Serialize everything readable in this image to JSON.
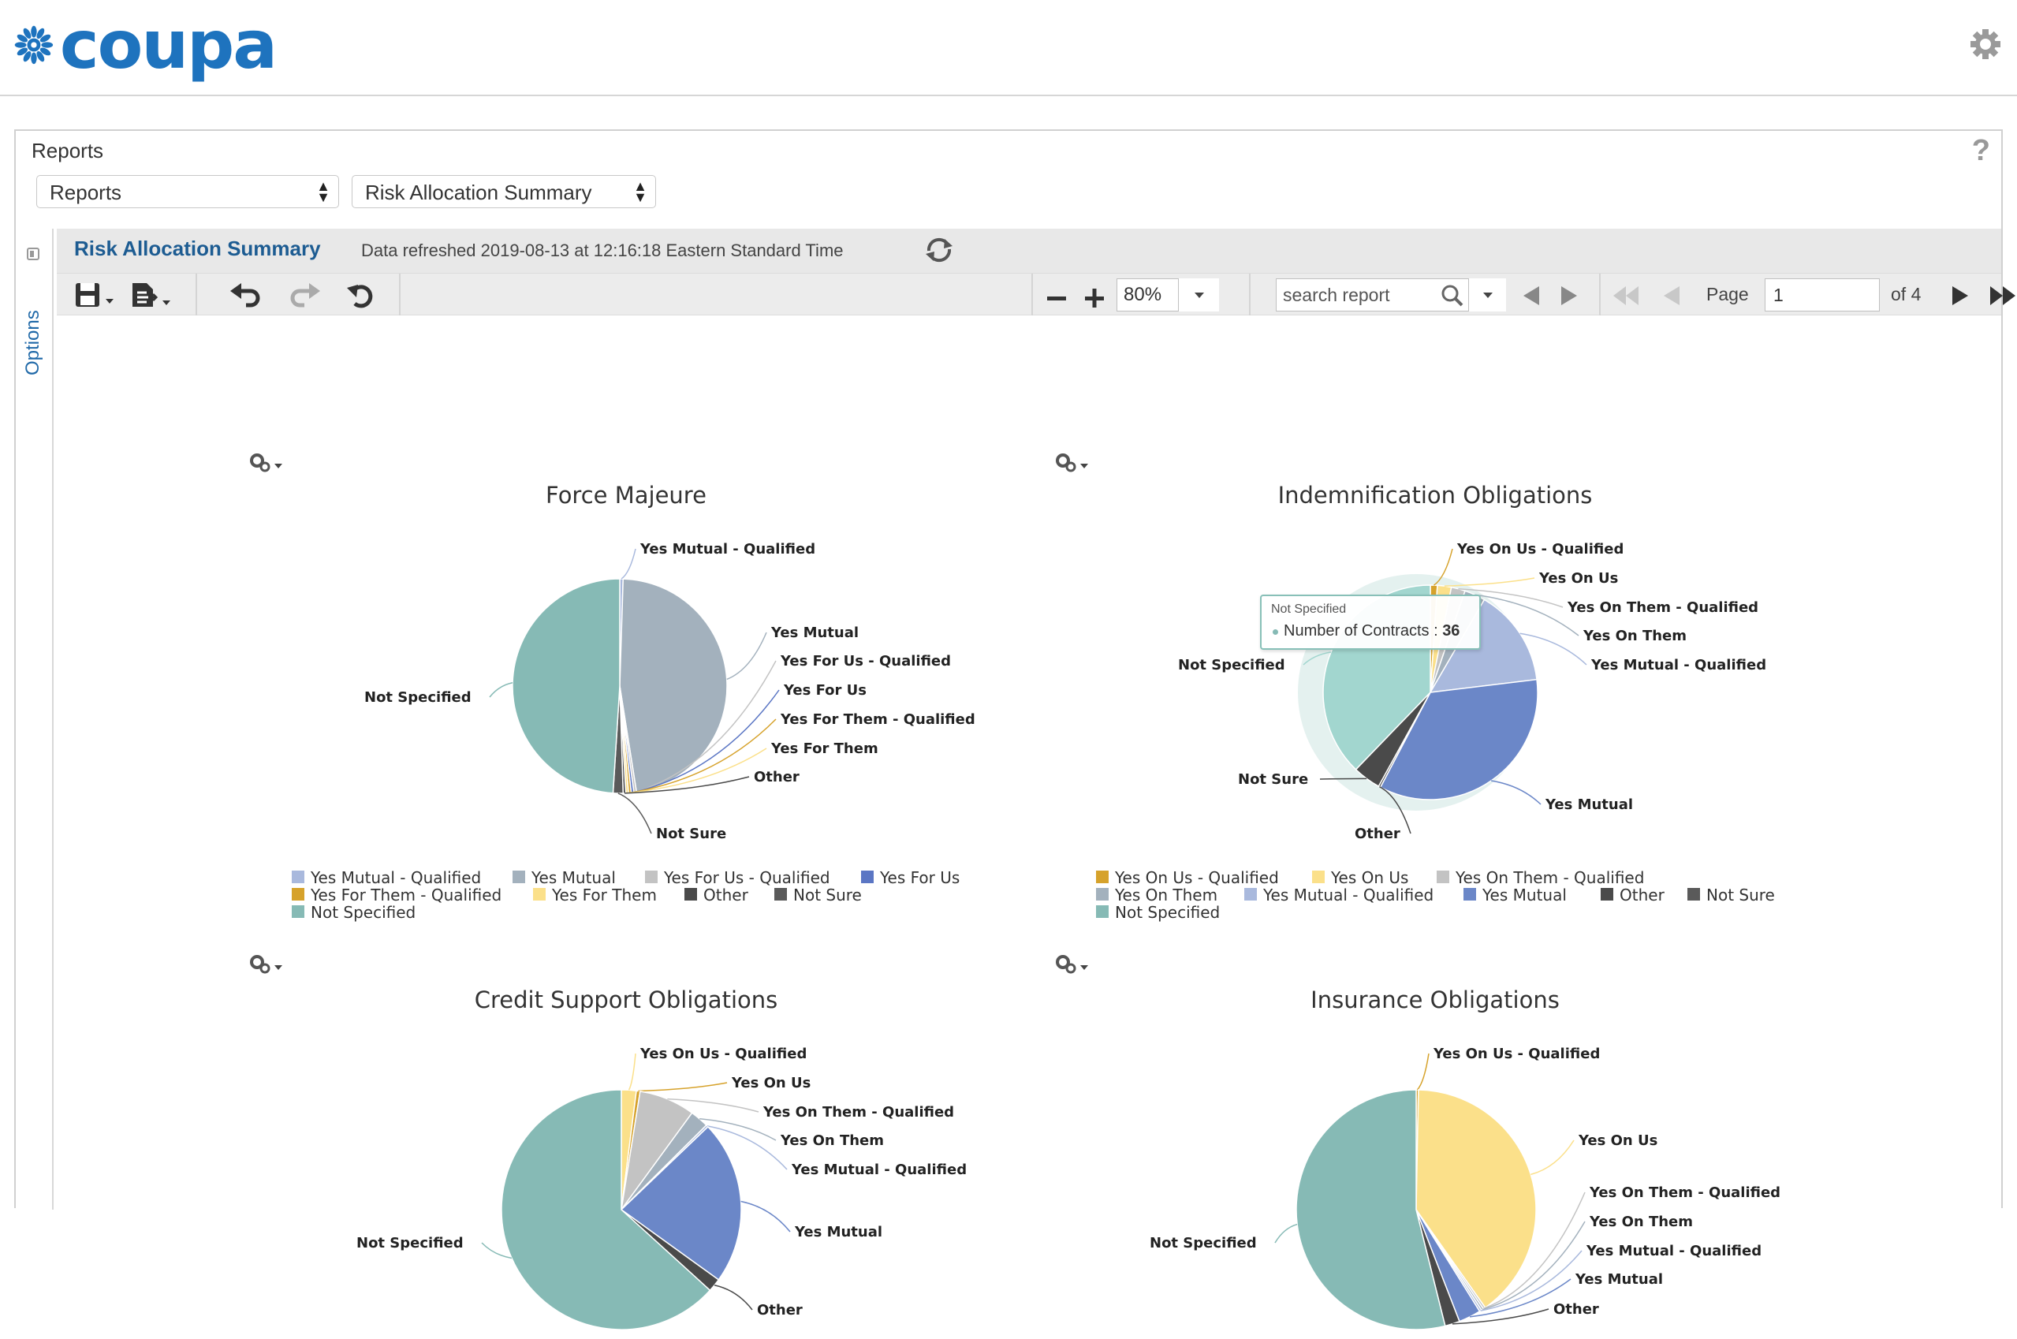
{
  "brand": {
    "name": "coupa",
    "color": "#1e73be"
  },
  "panel": {
    "title": "Reports",
    "help_icon": "question-icon",
    "select_category": "Reports",
    "select_report": "Risk Allocation Summary"
  },
  "options_rail": {
    "label": "Options"
  },
  "report_header": {
    "title": "Risk Allocation Summary",
    "refreshed": "Data refreshed 2019-08-13 at 12:16:18 Eastern Standard Time"
  },
  "toolbar": {
    "zoom": "80%",
    "search_placeholder": "search report",
    "page_label": "Page",
    "page_value": "1",
    "page_of": "of  4"
  },
  "tooltip": {
    "title": "Not Specified",
    "label": "Number of Contracts : ",
    "value": "36"
  },
  "colors": {
    "Yes Mutual - Qualified": "#a9b9dd",
    "Yes Mutual": "#6b87c8",
    "Yes For Us - Qualified": "#c3c3c3",
    "Yes For Us": "#5b76c4",
    "Yes For Them - Qualified": "#d6a22b",
    "Yes For Them": "#fbe08a",
    "Other": "#4a4a4a",
    "Not Sure": "#5a5a5a",
    "Not Specified": "#86bab5",
    "Yes On Us - Qualified": "#d6a22b",
    "Yes On Us": "#fbe08a",
    "Yes On Them - Qualified": "#c3c3c3",
    "Yes On Them": "#a3b1bd"
  },
  "chart_data": [
    {
      "type": "pie",
      "title": "Force Majeure",
      "categories": [
        "Yes Mutual - Qualified",
        "Yes Mutual",
        "Yes For Us - Qualified",
        "Yes For Us",
        "Yes For Them - Qualified",
        "Yes For Them",
        "Other",
        "Not Sure",
        "Not Specified"
      ],
      "values": [
        0.5,
        47,
        0.4,
        0.4,
        0.4,
        0.4,
        0.4,
        1.5,
        49
      ],
      "slice_colors": [
        "#a9b9dd",
        "#a3b1bd",
        "#c3c3c3",
        "#5b76c4",
        "#d6a22b",
        "#fbe08a",
        "#4a4a4a",
        "#5a5a5a",
        "#86bab5"
      ],
      "legend": [
        "Yes Mutual - Qualified",
        "Yes Mutual",
        "Yes For Us - Qualified",
        "Yes For Us",
        "Yes For Them - Qualified",
        "Yes For Them",
        "Other",
        "Not Sure",
        "Not Specified"
      ],
      "legend_colors": [
        "#a9b9dd",
        "#a3b1bd",
        "#c3c3c3",
        "#5b76c4",
        "#d6a22b",
        "#fbe08a",
        "#4a4a4a",
        "#5a5a5a",
        "#86bab5"
      ]
    },
    {
      "type": "pie",
      "title": "Indemnification Obligations",
      "categories": [
        "Yes On Us - Qualified",
        "Yes On Us",
        "Yes On Them - Qualified",
        "Yes On Them",
        "Yes Mutual - Qualified",
        "Yes Mutual",
        "Other",
        "Not Sure",
        "Not Specified"
      ],
      "values": [
        1,
        2,
        2,
        3,
        14,
        33,
        0.3,
        4,
        36
      ],
      "slice_colors": [
        "#d6a22b",
        "#fbe08a",
        "#c3c3c3",
        "#a3b1bd",
        "#a9b9dd",
        "#6b87c8",
        "#4a4a4a",
        "#4a4a4a",
        "#a2d6cf"
      ],
      "legend": [
        "Yes On Us - Qualified",
        "Yes On Us",
        "Yes On Them - Qualified",
        "Yes On Them",
        "Yes Mutual - Qualified",
        "Yes Mutual",
        "Other",
        "Not Sure",
        "Not Specified"
      ],
      "legend_colors": [
        "#d6a22b",
        "#fbe08a",
        "#c3c3c3",
        "#a3b1bd",
        "#a9b9dd",
        "#6b87c8",
        "#4a4a4a",
        "#5a5a5a",
        "#86bab5"
      ]
    },
    {
      "type": "pie",
      "title": "Credit Support Obligations",
      "categories": [
        "Yes On Us - Qualified",
        "Yes On Us",
        "Yes On Them - Qualified",
        "Yes On Them",
        "Yes Mutual - Qualified",
        "Yes Mutual",
        "Other",
        "Not Specified"
      ],
      "values": [
        2,
        0.5,
        7.5,
        2.5,
        0.3,
        22,
        1.8,
        63
      ],
      "slice_colors": [
        "#fbe08a",
        "#d6a22b",
        "#c3c3c3",
        "#a3b1bd",
        "#a9b9dd",
        "#6b87c8",
        "#4a4a4a",
        "#86bab5"
      ]
    },
    {
      "type": "pie",
      "title": "Insurance Obligations",
      "categories": [
        "Yes On Us - Qualified",
        "Yes On Us",
        "Yes On Them - Qualified",
        "Yes On Them",
        "Yes Mutual - Qualified",
        "Yes Mutual",
        "Other",
        "Not Specified"
      ],
      "values": [
        0.3,
        40,
        0.3,
        0.3,
        0.3,
        3,
        2,
        54
      ],
      "slice_colors": [
        "#d6a22b",
        "#fbe08a",
        "#c3c3c3",
        "#a3b1bd",
        "#a9b9dd",
        "#6b87c8",
        "#4a4a4a",
        "#86bab5"
      ]
    }
  ]
}
